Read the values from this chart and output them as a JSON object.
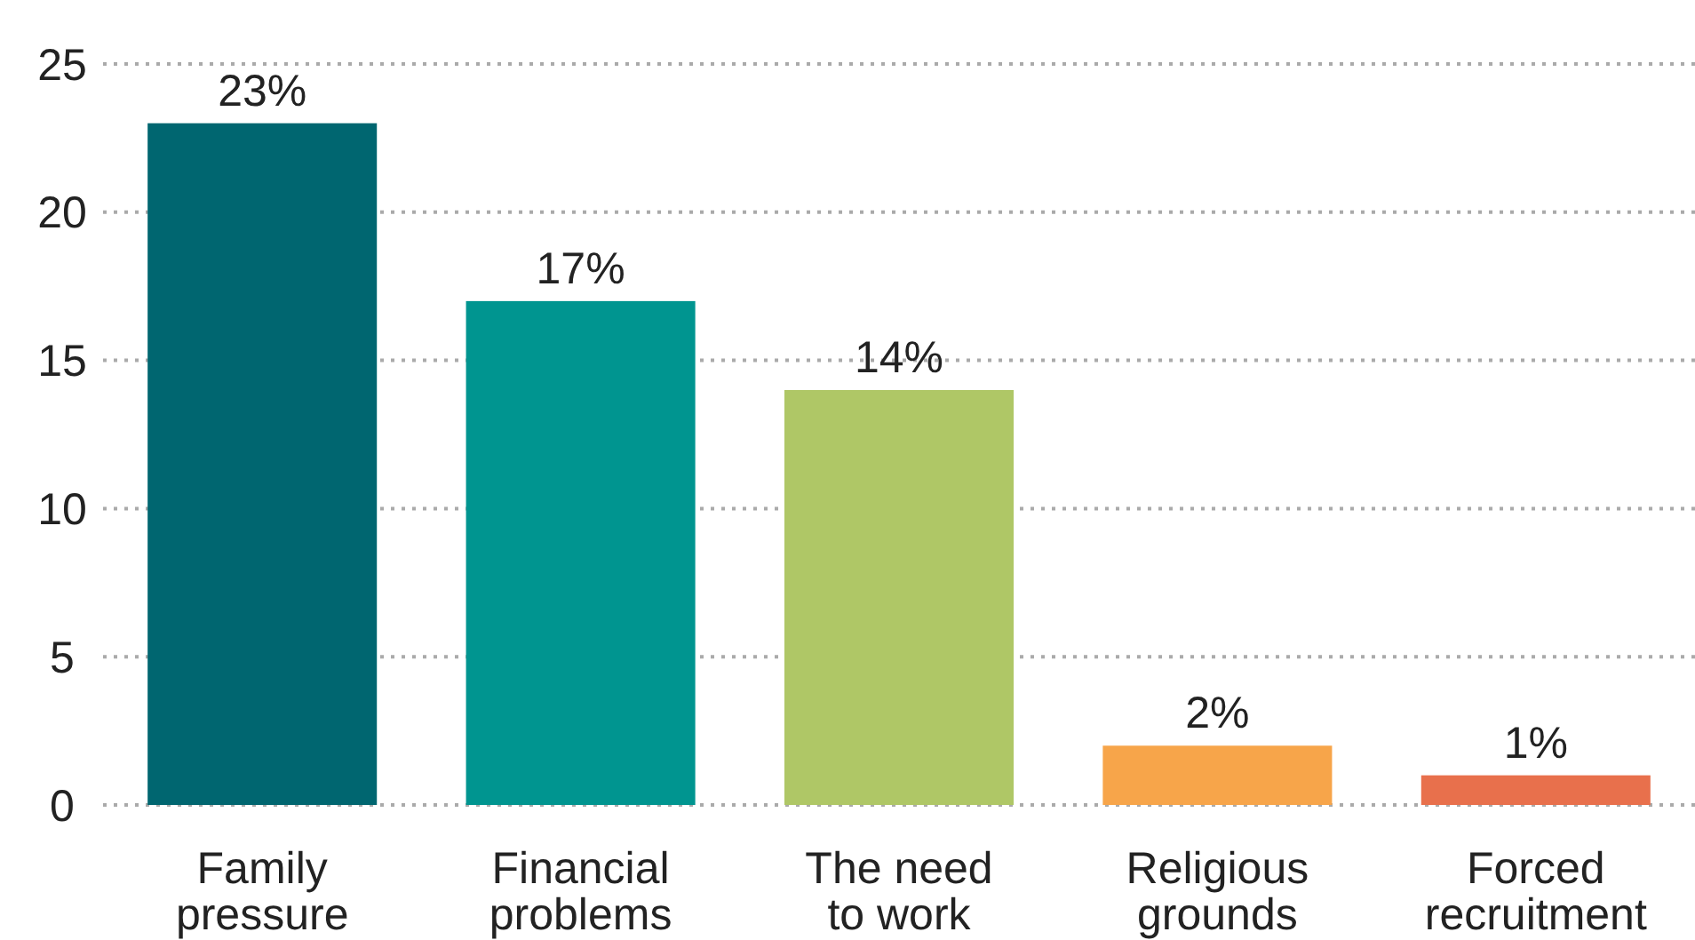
{
  "chart_data": {
    "type": "bar",
    "categories": [
      "Family pressure",
      "Financial problems",
      "The need to work",
      "Religious grounds",
      "Forced recruitment"
    ],
    "values": [
      23,
      17,
      14,
      2,
      1
    ],
    "colors": [
      "#006670",
      "#009590",
      "#afc766",
      "#f7a54a",
      "#e8704c"
    ],
    "value_labels": [
      "23%",
      "17%",
      "14%",
      "2%",
      "1%"
    ],
    "ylim": [
      0,
      25
    ],
    "yticks": [
      0,
      5,
      10,
      15,
      20,
      25
    ],
    "grid": "y"
  }
}
